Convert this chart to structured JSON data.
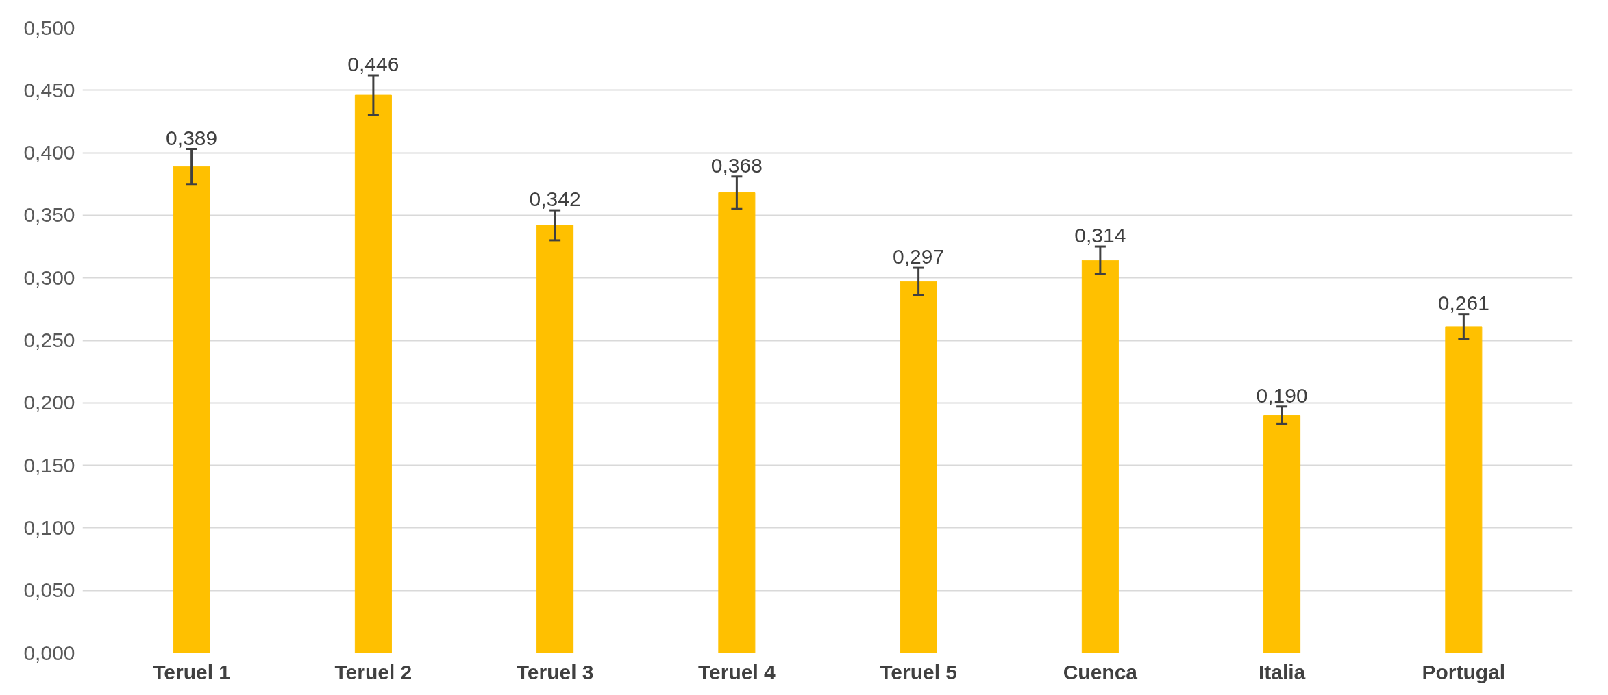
{
  "chart_data": {
    "type": "bar",
    "categories": [
      "Teruel 1",
      "Teruel 2",
      "Teruel 3",
      "Teruel 4",
      "Teruel 5",
      "Cuenca",
      "Italia",
      "Portugal"
    ],
    "values": [
      0.389,
      0.446,
      0.342,
      0.368,
      0.297,
      0.314,
      0.19,
      0.261
    ],
    "errors": [
      0.014,
      0.016,
      0.012,
      0.013,
      0.011,
      0.011,
      0.007,
      0.01
    ],
    "value_labels": [
      "0,389",
      "0,446",
      "0,342",
      "0,368",
      "0,297",
      "0,314",
      "0,190",
      "0,261"
    ],
    "color": "#ffc000",
    "ylim": [
      0,
      0.5
    ],
    "yticks": [
      {
        "value": 0,
        "label": "0,000"
      },
      {
        "value": 0.05,
        "label": "0,050"
      },
      {
        "value": 0.1,
        "label": "0,100"
      },
      {
        "value": 0.15,
        "label": "0,150"
      },
      {
        "value": 0.2,
        "label": "0,200"
      },
      {
        "value": 0.25,
        "label": "0,250"
      },
      {
        "value": 0.3,
        "label": "0,300"
      },
      {
        "value": 0.35,
        "label": "0,350"
      },
      {
        "value": 0.4,
        "label": "0,400"
      },
      {
        "value": 0.45,
        "label": "0,450"
      },
      {
        "value": 0.5,
        "label": "0,500"
      }
    ],
    "grid": "y"
  }
}
